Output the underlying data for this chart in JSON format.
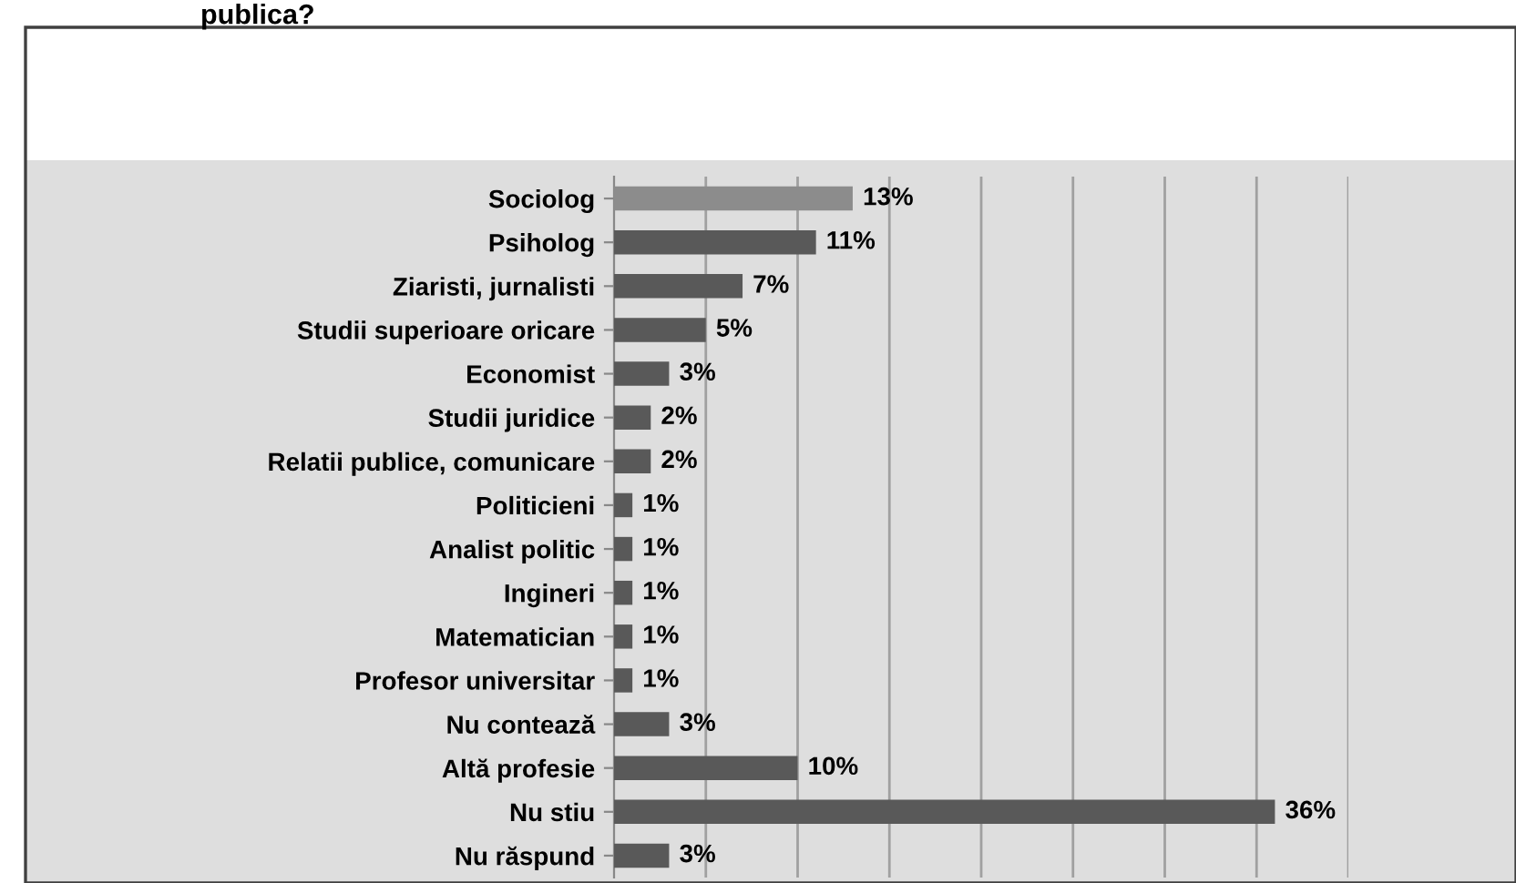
{
  "chart_data": {
    "type": "bar",
    "orientation": "horizontal",
    "title": "publica?",
    "categories": [
      "Sociolog",
      "Psiholog",
      "Ziaristi, jurnalisti",
      "Studii superioare oricare",
      "Economist",
      "Studii juridice",
      "Relatii publice, comunicare",
      "Politicieni",
      "Analist politic",
      "Ingineri",
      "Matematician",
      "Profesor universitar",
      "Nu contează",
      "Altă profesie",
      "Nu stiu",
      "Nu răspund"
    ],
    "values": [
      13,
      11,
      7,
      5,
      3,
      2,
      2,
      1,
      1,
      1,
      1,
      1,
      3,
      10,
      36,
      3
    ],
    "colors": [
      "#8c8c8c",
      "#595959",
      "#595959",
      "#595959",
      "#595959",
      "#595959",
      "#595959",
      "#595959",
      "#595959",
      "#595959",
      "#595959",
      "#595959",
      "#595959",
      "#595959",
      "#595959",
      "#595959"
    ],
    "value_labels": [
      "13%",
      "11%",
      "7%",
      "5%",
      "3%",
      "2%",
      "2%",
      "1%",
      "1%",
      "1%",
      "1%",
      "1%",
      "3%",
      "10%",
      "36%",
      "3%"
    ],
    "xlim": [
      0,
      40
    ],
    "xticks": [
      {
        "value": 5,
        "label": null
      },
      {
        "value": 10,
        "label": null
      },
      {
        "value": 15,
        "label": null
      },
      {
        "value": 20,
        "label": null
      },
      {
        "value": 25,
        "label": null
      },
      {
        "value": 30,
        "label": null
      },
      {
        "value": 35,
        "label": null
      },
      {
        "value": 40,
        "label": null
      }
    ],
    "grid": "x",
    "tick_labels": "y",
    "legend": false
  }
}
